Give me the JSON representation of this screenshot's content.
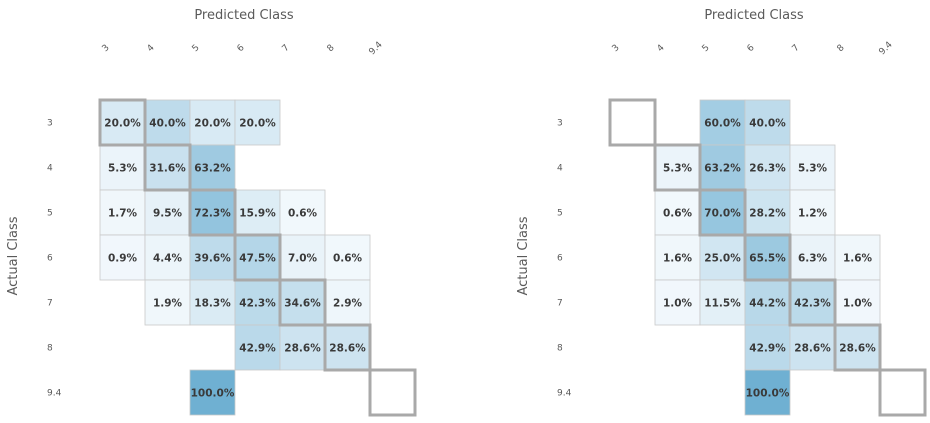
{
  "chart_data": [
    {
      "type": "heatmap",
      "xlabel": "Predicted Class",
      "ylabel": "Actual Class",
      "x_categories": [
        "3",
        "4",
        "5",
        "6",
        "7",
        "8",
        "9.4"
      ],
      "y_categories": [
        "3",
        "4",
        "5",
        "6",
        "7",
        "8",
        "9.4"
      ],
      "value_format": "percent",
      "values": [
        [
          20.0,
          40.0,
          20.0,
          20.0,
          null,
          null,
          null
        ],
        [
          5.3,
          31.6,
          63.2,
          null,
          null,
          null,
          null
        ],
        [
          1.7,
          9.5,
          72.3,
          15.9,
          0.6,
          null,
          null
        ],
        [
          0.9,
          4.4,
          39.6,
          47.5,
          7.0,
          0.6,
          null
        ],
        [
          null,
          1.9,
          18.3,
          42.3,
          34.6,
          2.9,
          null
        ],
        [
          null,
          null,
          null,
          42.9,
          28.6,
          28.6,
          null
        ],
        [
          null,
          null,
          100.0,
          null,
          null,
          null,
          null
        ]
      ],
      "highlight": "diagonal"
    },
    {
      "type": "heatmap",
      "xlabel": "Predicted Class",
      "ylabel": "Actual Class",
      "x_categories": [
        "3",
        "4",
        "5",
        "6",
        "7",
        "8",
        "9.4"
      ],
      "y_categories": [
        "3",
        "4",
        "5",
        "6",
        "7",
        "8",
        "9.4"
      ],
      "value_format": "percent",
      "values": [
        [
          null,
          null,
          60.0,
          40.0,
          null,
          null,
          null
        ],
        [
          null,
          5.3,
          63.2,
          26.3,
          5.3,
          null,
          null
        ],
        [
          null,
          0.6,
          70.0,
          28.2,
          1.2,
          null,
          null
        ],
        [
          null,
          1.6,
          25.0,
          65.5,
          6.3,
          1.6,
          null
        ],
        [
          null,
          1.0,
          11.5,
          44.2,
          42.3,
          1.0,
          null
        ],
        [
          null,
          null,
          null,
          42.9,
          28.6,
          28.6,
          null
        ],
        [
          null,
          null,
          null,
          100.0,
          null,
          null,
          null
        ]
      ],
      "highlight": "diagonal"
    }
  ],
  "colors": {
    "cell_low": "#f2f8fc",
    "cell_high": "#6fb0d2",
    "cell_border": "#c9c9c9",
    "diagonal_border": "#a9a9a9",
    "text": "#3a3a3a",
    "axis_text": "#5a5a5a"
  }
}
